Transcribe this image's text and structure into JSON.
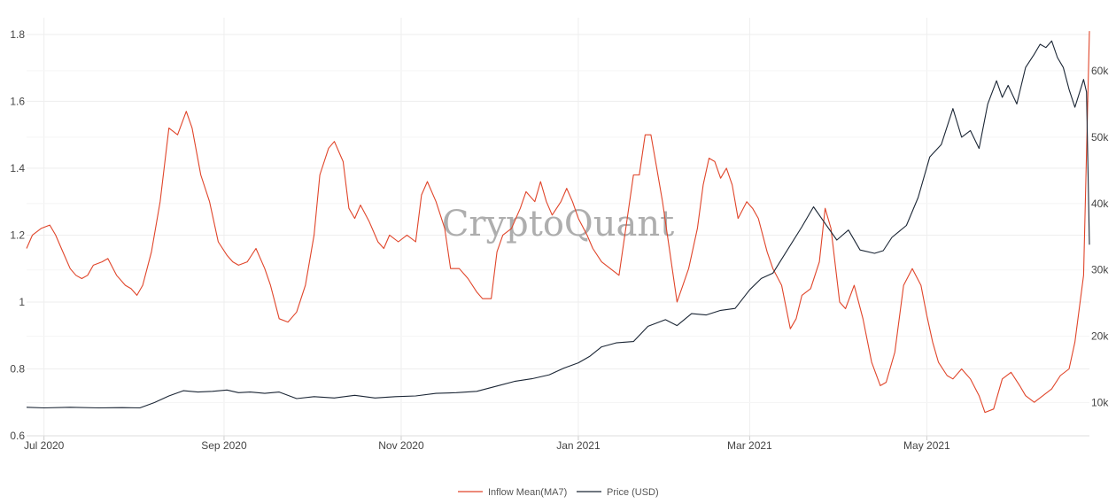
{
  "watermark": "CryptoQuant",
  "chart_data": {
    "type": "line",
    "x_axis": {
      "ticks": [
        "Jul 2020",
        "Sep 2020",
        "Nov 2020",
        "Jan 2021",
        "Mar 2021",
        "May 2021"
      ],
      "range": [
        "2020-06-25",
        "2021-06-26"
      ]
    },
    "y_left": {
      "range": [
        0.6,
        1.85
      ],
      "ticks": [
        "0.6",
        "0.8",
        "1",
        "1.2",
        "1.4",
        "1.6",
        "1.8"
      ]
    },
    "y_right": {
      "range": [
        5000,
        68000
      ],
      "ticks": [
        "10k",
        "20k",
        "30k",
        "40k",
        "50k",
        "60k"
      ]
    },
    "grid": true,
    "legend": {
      "placement": "bottom-center"
    },
    "series": [
      {
        "name": "Inflow Mean(MA7)",
        "axis": "left",
        "color": "#e0452a",
        "points": [
          [
            "2020-06-25",
            1.16
          ],
          [
            "2020-06-27",
            1.2
          ],
          [
            "2020-06-30",
            1.22
          ],
          [
            "2020-07-03",
            1.23
          ],
          [
            "2020-07-05",
            1.2
          ],
          [
            "2020-07-07",
            1.16
          ],
          [
            "2020-07-10",
            1.1
          ],
          [
            "2020-07-12",
            1.08
          ],
          [
            "2020-07-14",
            1.07
          ],
          [
            "2020-07-16",
            1.08
          ],
          [
            "2020-07-18",
            1.11
          ],
          [
            "2020-07-21",
            1.12
          ],
          [
            "2020-07-23",
            1.13
          ],
          [
            "2020-07-26",
            1.08
          ],
          [
            "2020-07-29",
            1.05
          ],
          [
            "2020-07-31",
            1.04
          ],
          [
            "2020-08-02",
            1.02
          ],
          [
            "2020-08-04",
            1.05
          ],
          [
            "2020-08-07",
            1.15
          ],
          [
            "2020-08-10",
            1.3
          ],
          [
            "2020-08-13",
            1.52
          ],
          [
            "2020-08-16",
            1.5
          ],
          [
            "2020-08-19",
            1.57
          ],
          [
            "2020-08-21",
            1.52
          ],
          [
            "2020-08-24",
            1.38
          ],
          [
            "2020-08-27",
            1.3
          ],
          [
            "2020-08-30",
            1.18
          ],
          [
            "2020-09-02",
            1.14
          ],
          [
            "2020-09-04",
            1.12
          ],
          [
            "2020-09-06",
            1.11
          ],
          [
            "2020-09-09",
            1.12
          ],
          [
            "2020-09-12",
            1.16
          ],
          [
            "2020-09-15",
            1.1
          ],
          [
            "2020-09-17",
            1.05
          ],
          [
            "2020-09-20",
            0.95
          ],
          [
            "2020-09-23",
            0.94
          ],
          [
            "2020-09-26",
            0.97
          ],
          [
            "2020-09-29",
            1.05
          ],
          [
            "2020-10-02",
            1.2
          ],
          [
            "2020-10-04",
            1.38
          ],
          [
            "2020-10-07",
            1.46
          ],
          [
            "2020-10-09",
            1.48
          ],
          [
            "2020-10-12",
            1.42
          ],
          [
            "2020-10-14",
            1.28
          ],
          [
            "2020-10-16",
            1.25
          ],
          [
            "2020-10-18",
            1.29
          ],
          [
            "2020-10-21",
            1.24
          ],
          [
            "2020-10-24",
            1.18
          ],
          [
            "2020-10-26",
            1.16
          ],
          [
            "2020-10-28",
            1.2
          ],
          [
            "2020-10-31",
            1.18
          ],
          [
            "2020-11-03",
            1.2
          ],
          [
            "2020-11-06",
            1.18
          ],
          [
            "2020-11-08",
            1.32
          ],
          [
            "2020-11-10",
            1.36
          ],
          [
            "2020-11-13",
            1.3
          ],
          [
            "2020-11-16",
            1.22
          ],
          [
            "2020-11-18",
            1.1
          ],
          [
            "2020-11-21",
            1.1
          ],
          [
            "2020-11-24",
            1.07
          ],
          [
            "2020-11-27",
            1.03
          ],
          [
            "2020-11-29",
            1.01
          ],
          [
            "2020-12-02",
            1.01
          ],
          [
            "2020-12-04",
            1.15
          ],
          [
            "2020-12-06",
            1.2
          ],
          [
            "2020-12-09",
            1.22
          ],
          [
            "2020-12-12",
            1.28
          ],
          [
            "2020-12-14",
            1.33
          ],
          [
            "2020-12-17",
            1.3
          ],
          [
            "2020-12-19",
            1.36
          ],
          [
            "2020-12-21",
            1.3
          ],
          [
            "2020-12-23",
            1.26
          ],
          [
            "2020-12-26",
            1.3
          ],
          [
            "2020-12-28",
            1.34
          ],
          [
            "2020-12-30",
            1.3
          ],
          [
            "2021-01-01",
            1.25
          ],
          [
            "2021-01-04",
            1.2
          ],
          [
            "2021-01-06",
            1.16
          ],
          [
            "2021-01-09",
            1.12
          ],
          [
            "2021-01-12",
            1.1
          ],
          [
            "2021-01-15",
            1.08
          ],
          [
            "2021-01-18",
            1.26
          ],
          [
            "2021-01-20",
            1.38
          ],
          [
            "2021-01-22",
            1.38
          ],
          [
            "2021-01-24",
            1.5
          ],
          [
            "2021-01-26",
            1.5
          ],
          [
            "2021-01-28",
            1.4
          ],
          [
            "2021-01-30",
            1.3
          ],
          [
            "2021-02-01",
            1.18
          ],
          [
            "2021-02-04",
            1.0
          ],
          [
            "2021-02-06",
            1.05
          ],
          [
            "2021-02-08",
            1.1
          ],
          [
            "2021-02-11",
            1.22
          ],
          [
            "2021-02-13",
            1.35
          ],
          [
            "2021-02-15",
            1.43
          ],
          [
            "2021-02-17",
            1.42
          ],
          [
            "2021-02-19",
            1.37
          ],
          [
            "2021-02-21",
            1.4
          ],
          [
            "2021-02-23",
            1.35
          ],
          [
            "2021-02-25",
            1.25
          ],
          [
            "2021-02-28",
            1.3
          ],
          [
            "2021-03-02",
            1.28
          ],
          [
            "2021-03-04",
            1.25
          ],
          [
            "2021-03-07",
            1.15
          ],
          [
            "2021-03-09",
            1.1
          ],
          [
            "2021-03-12",
            1.05
          ],
          [
            "2021-03-15",
            0.92
          ],
          [
            "2021-03-17",
            0.95
          ],
          [
            "2021-03-19",
            1.02
          ],
          [
            "2021-03-22",
            1.04
          ],
          [
            "2021-03-25",
            1.12
          ],
          [
            "2021-03-27",
            1.28
          ],
          [
            "2021-03-29",
            1.22
          ],
          [
            "2021-04-01",
            1.0
          ],
          [
            "2021-04-03",
            0.98
          ],
          [
            "2021-04-06",
            1.05
          ],
          [
            "2021-04-09",
            0.95
          ],
          [
            "2021-04-12",
            0.82
          ],
          [
            "2021-04-15",
            0.75
          ],
          [
            "2021-04-17",
            0.76
          ],
          [
            "2021-04-20",
            0.85
          ],
          [
            "2021-04-23",
            1.05
          ],
          [
            "2021-04-26",
            1.1
          ],
          [
            "2021-04-29",
            1.05
          ],
          [
            "2021-05-01",
            0.96
          ],
          [
            "2021-05-03",
            0.88
          ],
          [
            "2021-05-05",
            0.82
          ],
          [
            "2021-05-08",
            0.78
          ],
          [
            "2021-05-10",
            0.77
          ],
          [
            "2021-05-13",
            0.8
          ],
          [
            "2021-05-16",
            0.77
          ],
          [
            "2021-05-19",
            0.72
          ],
          [
            "2021-05-21",
            0.67
          ],
          [
            "2021-05-24",
            0.68
          ],
          [
            "2021-05-27",
            0.77
          ],
          [
            "2021-05-30",
            0.79
          ],
          [
            "2021-06-02",
            0.75
          ],
          [
            "2021-06-04",
            0.72
          ],
          [
            "2021-06-07",
            0.7
          ],
          [
            "2021-06-10",
            0.72
          ],
          [
            "2021-06-13",
            0.74
          ],
          [
            "2021-06-16",
            0.78
          ],
          [
            "2021-06-19",
            0.8
          ],
          [
            "2021-06-21",
            0.88
          ],
          [
            "2021-06-24",
            1.08
          ],
          [
            "2021-06-26",
            1.81
          ]
        ]
      },
      {
        "name": "Price (USD)",
        "axis": "right",
        "color": "#1b2635",
        "points": [
          [
            "2020-06-25",
            9300
          ],
          [
            "2020-07-01",
            9200
          ],
          [
            "2020-07-10",
            9300
          ],
          [
            "2020-07-20",
            9200
          ],
          [
            "2020-07-28",
            9250
          ],
          [
            "2020-08-03",
            9200
          ],
          [
            "2020-08-08",
            10000
          ],
          [
            "2020-08-13",
            11000
          ],
          [
            "2020-08-18",
            11800
          ],
          [
            "2020-08-23",
            11600
          ],
          [
            "2020-08-28",
            11700
          ],
          [
            "2020-09-02",
            11900
          ],
          [
            "2020-09-06",
            11500
          ],
          [
            "2020-09-10",
            11600
          ],
          [
            "2020-09-15",
            11400
          ],
          [
            "2020-09-20",
            11600
          ],
          [
            "2020-09-26",
            10600
          ],
          [
            "2020-10-02",
            10900
          ],
          [
            "2020-10-09",
            10700
          ],
          [
            "2020-10-16",
            11100
          ],
          [
            "2020-10-23",
            10700
          ],
          [
            "2020-10-30",
            10900
          ],
          [
            "2020-11-06",
            11000
          ],
          [
            "2020-11-13",
            11400
          ],
          [
            "2020-11-20",
            11500
          ],
          [
            "2020-11-27",
            11700
          ],
          [
            "2020-12-04",
            12500
          ],
          [
            "2020-12-10",
            13200
          ],
          [
            "2020-12-16",
            13600
          ],
          [
            "2020-12-22",
            14200
          ],
          [
            "2020-12-27",
            15200
          ],
          [
            "2021-01-01",
            16000
          ],
          [
            "2021-01-05",
            17000
          ],
          [
            "2021-01-09",
            18400
          ],
          [
            "2021-01-14",
            19000
          ],
          [
            "2021-01-20",
            19200
          ],
          [
            "2021-01-25",
            21500
          ],
          [
            "2021-01-31",
            22500
          ],
          [
            "2021-02-04",
            21600
          ],
          [
            "2021-02-09",
            23400
          ],
          [
            "2021-02-14",
            23200
          ],
          [
            "2021-02-19",
            23900
          ],
          [
            "2021-02-24",
            24200
          ],
          [
            "2021-03-01",
            27000
          ],
          [
            "2021-03-05",
            28700
          ],
          [
            "2021-03-09",
            29500
          ],
          [
            "2021-03-14",
            33000
          ],
          [
            "2021-03-19",
            36500
          ],
          [
            "2021-03-23",
            39500
          ],
          [
            "2021-03-27",
            37000
          ],
          [
            "2021-03-31",
            34500
          ],
          [
            "2021-04-04",
            36000
          ],
          [
            "2021-04-08",
            33000
          ],
          [
            "2021-04-13",
            32500
          ],
          [
            "2021-04-16",
            32900
          ],
          [
            "2021-04-19",
            34900
          ],
          [
            "2021-04-24",
            36700
          ],
          [
            "2021-04-28",
            40900
          ],
          [
            "2021-05-02",
            47000
          ],
          [
            "2021-05-06",
            48900
          ],
          [
            "2021-05-10",
            54300
          ],
          [
            "2021-05-13",
            50000
          ],
          [
            "2021-05-16",
            51000
          ],
          [
            "2021-05-19",
            48300
          ],
          [
            "2021-05-22",
            55000
          ],
          [
            "2021-05-25",
            58500
          ],
          [
            "2021-05-27",
            56000
          ],
          [
            "2021-05-29",
            57800
          ],
          [
            "2021-06-01",
            55000
          ],
          [
            "2021-06-04",
            60500
          ],
          [
            "2021-06-07",
            62500
          ],
          [
            "2021-06-09",
            64000
          ],
          [
            "2021-06-11",
            63500
          ],
          [
            "2021-06-13",
            64500
          ],
          [
            "2021-06-15",
            62000
          ],
          [
            "2021-06-17",
            60500
          ],
          [
            "2021-06-19",
            57200
          ],
          [
            "2021-06-21",
            54500
          ],
          [
            "2021-06-23",
            57300
          ],
          [
            "2021-06-24",
            58700
          ],
          [
            "2021-06-25",
            56800
          ],
          [
            "2021-06-26",
            33800
          ]
        ]
      }
    ]
  }
}
